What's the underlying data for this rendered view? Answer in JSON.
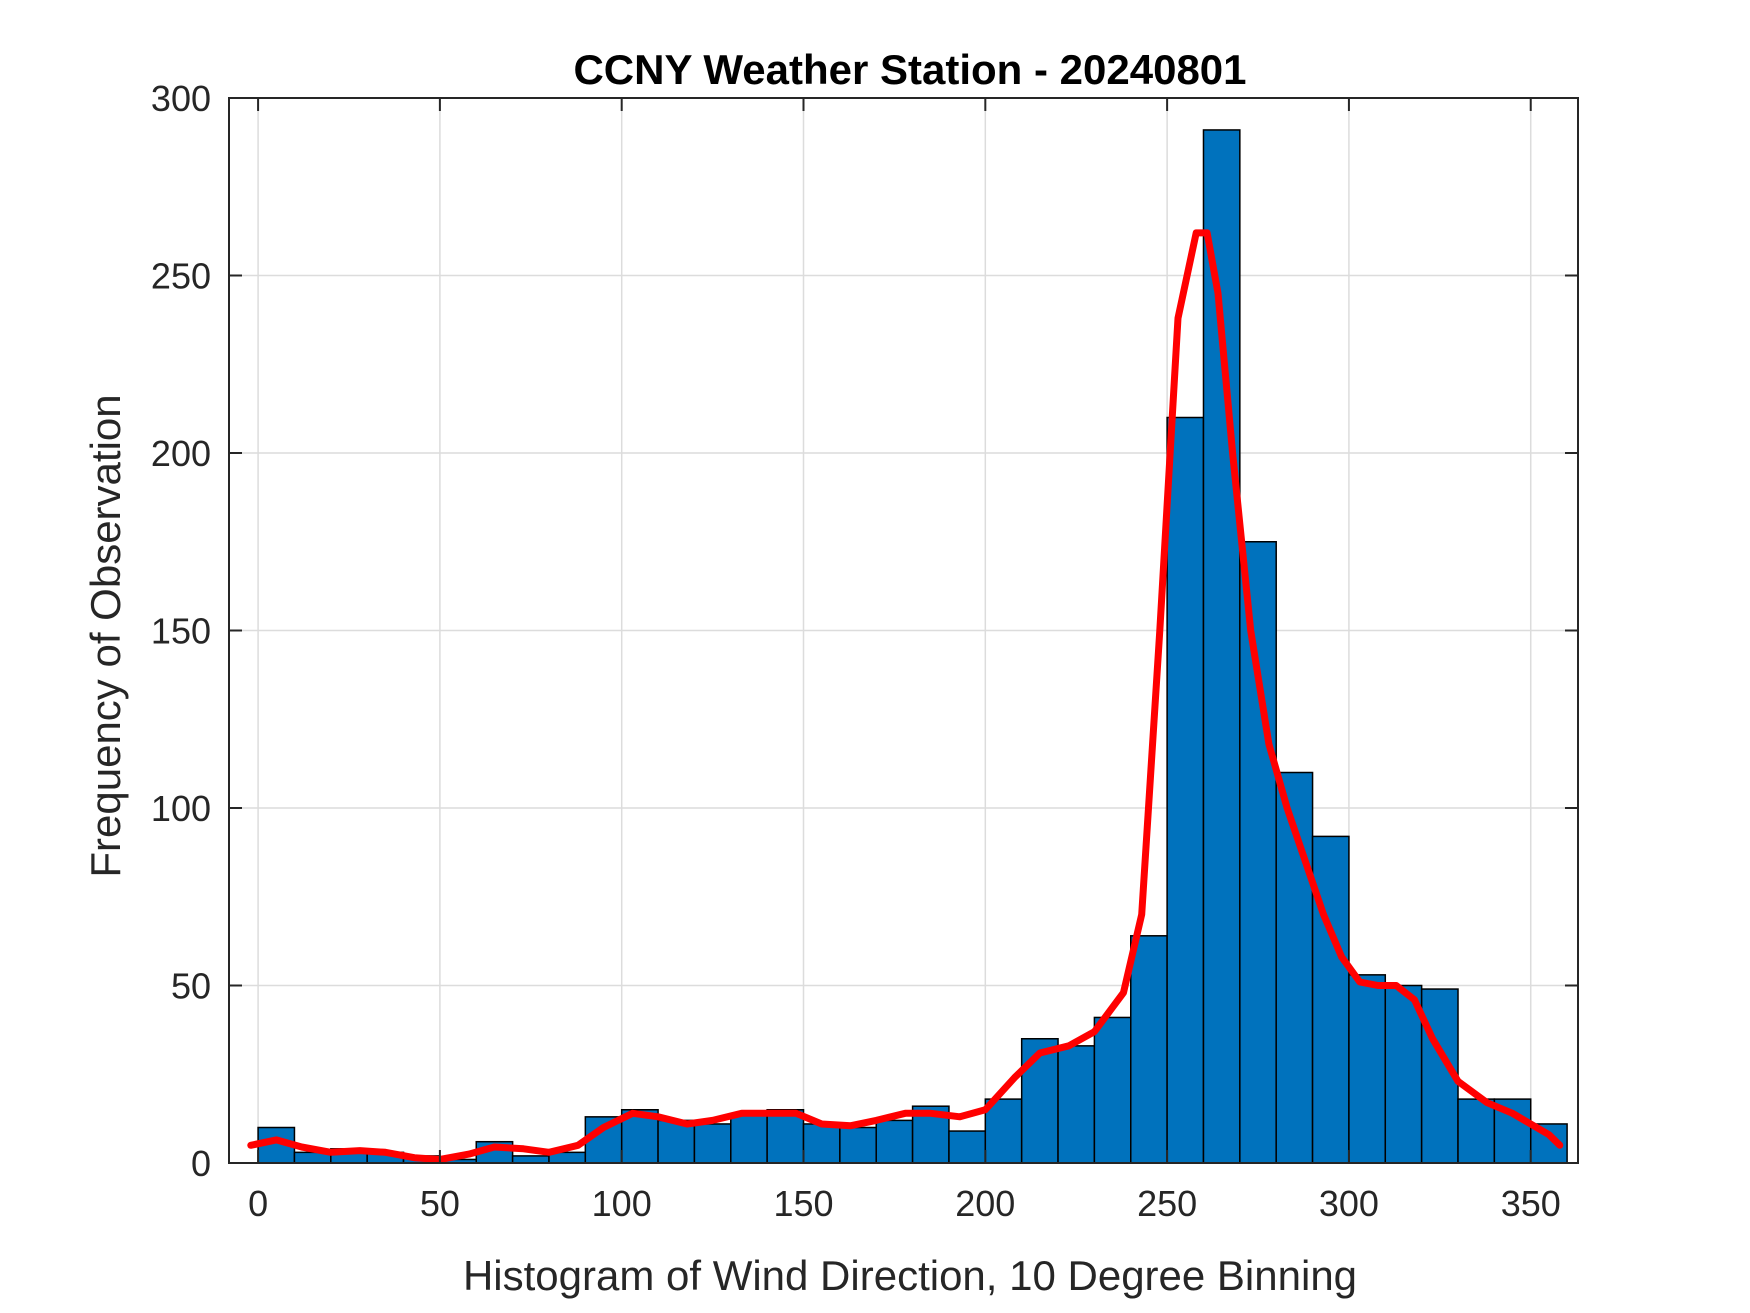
{
  "chart_data": {
    "type": "bar",
    "title": "CCNY Weather Station - 20240801",
    "xlabel": "Histogram of Wind Direction, 10 Degree Binning",
    "ylabel": "Frequency of Observation",
    "xlim": [
      -8,
      363
    ],
    "ylim": [
      0,
      300
    ],
    "xticks": [
      0,
      50,
      100,
      150,
      200,
      250,
      300,
      350
    ],
    "yticks": [
      0,
      50,
      100,
      150,
      200,
      250,
      300
    ],
    "grid": true,
    "bin_width": 10,
    "bin_edges": [
      0,
      10,
      20,
      30,
      40,
      50,
      60,
      70,
      80,
      90,
      100,
      110,
      120,
      130,
      140,
      150,
      160,
      170,
      180,
      190,
      200,
      210,
      220,
      230,
      240,
      250,
      260,
      270,
      280,
      290,
      300,
      310,
      320,
      330,
      340,
      350,
      360
    ],
    "values": [
      10,
      3,
      4,
      3,
      2,
      1,
      6,
      2,
      3,
      13,
      15,
      12,
      11,
      14,
      15,
      11,
      10,
      12,
      16,
      9,
      18,
      35,
      33,
      41,
      64,
      210,
      291,
      175,
      110,
      92,
      53,
      50,
      49,
      18,
      18,
      11
    ],
    "bar_color": "#0072BD",
    "curve_color": "#FF0000",
    "curve": {
      "x": [
        -2,
        5,
        12,
        20,
        28,
        35,
        43,
        50,
        58,
        65,
        73,
        80,
        88,
        95,
        103,
        110,
        118,
        125,
        133,
        140,
        148,
        155,
        163,
        170,
        178,
        185,
        193,
        200,
        208,
        215,
        223,
        230,
        238,
        243,
        248,
        253,
        258,
        261,
        264,
        268,
        273,
        278,
        283,
        288,
        293,
        298,
        303,
        308,
        313,
        318,
        323,
        330,
        338,
        345,
        350,
        355,
        358
      ],
      "y": [
        5,
        6.5,
        4.5,
        3,
        3.5,
        3,
        1.5,
        1,
        2.5,
        4.5,
        4,
        3,
        5,
        10,
        14,
        13,
        11,
        12,
        14,
        14,
        14,
        11,
        10.5,
        12,
        14,
        14,
        13,
        15,
        24,
        31,
        33,
        37,
        48,
        70,
        150,
        238,
        262,
        262,
        245,
        200,
        150,
        118,
        100,
        85,
        70,
        58,
        51,
        50,
        50,
        46,
        35,
        23,
        17,
        14,
        11,
        8,
        5
      ]
    }
  }
}
